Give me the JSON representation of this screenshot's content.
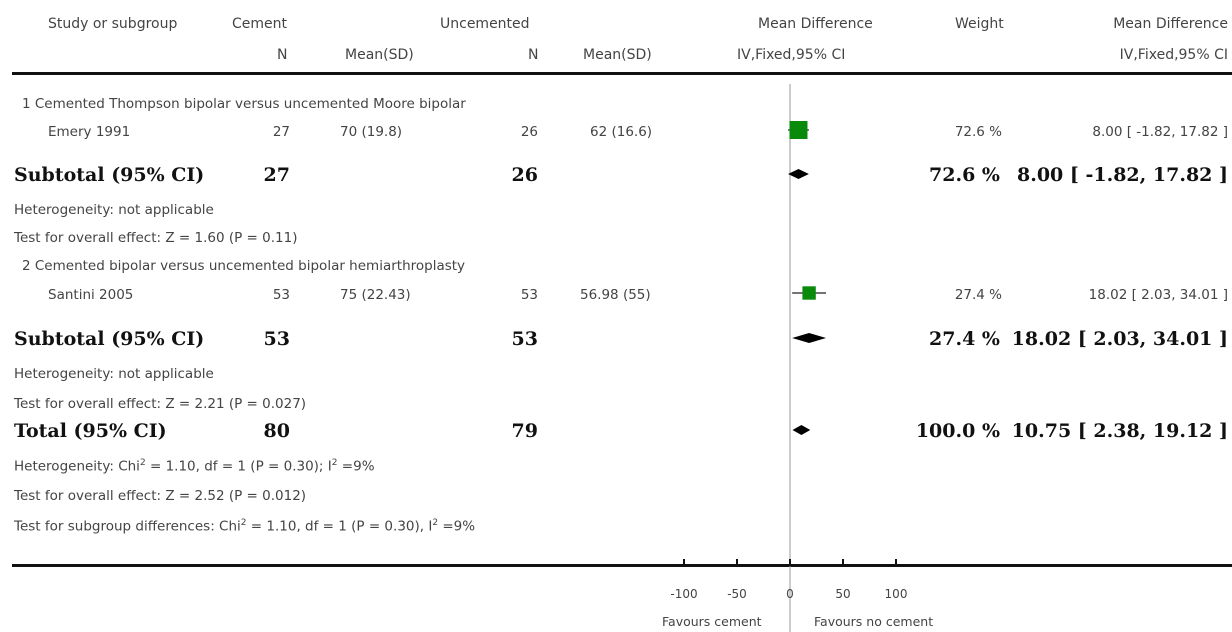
{
  "header": {
    "study_col": "Study or subgroup",
    "group1": "Cement",
    "group2": "Uncemented",
    "n_label": "N",
    "mean_sd_label": "Mean(SD)",
    "md_label": "Mean Difference",
    "md_method": "IV,Fixed,95% CI",
    "weight_label": "Weight",
    "md_label_right": "Mean Difference",
    "md_method_right": "IV,Fixed,95% CI"
  },
  "groups": [
    {
      "title": "1 Cemented Thompson bipolar versus uncemented Moore bipolar",
      "study": {
        "name": "Emery 1991",
        "n1": "27",
        "ms1": "70 (19.8)",
        "n2": "26",
        "ms2": "62 (16.6)",
        "weight": "72.6 %",
        "ci": "8.00 [ -1.82, 17.82 ]"
      },
      "subtotal": {
        "label": "Subtotal (95% CI)",
        "n1": "27",
        "n2": "26",
        "weight": "72.6 %",
        "ci": "8.00 [ -1.82, 17.82 ]"
      },
      "heterogeneity": "Heterogeneity: not applicable",
      "overall": "Test for overall effect: Z = 1.60 (P = 0.11)"
    },
    {
      "title": "2 Cemented bipolar versus uncemented bipolar hemiarthroplasty",
      "study": {
        "name": "Santini 2005",
        "n1": "53",
        "ms1": "75 (22.43)",
        "n2": "53",
        "ms2": "56.98 (55)",
        "weight": "27.4 %",
        "ci": "18.02 [ 2.03, 34.01 ]"
      },
      "subtotal": {
        "label": "Subtotal (95% CI)",
        "n1": "53",
        "n2": "53",
        "weight": "27.4 %",
        "ci": "18.02 [ 2.03, 34.01 ]"
      },
      "heterogeneity": "Heterogeneity: not applicable",
      "overall": "Test for overall effect: Z = 2.21 (P = 0.027)"
    }
  ],
  "total": {
    "label": "Total (95% CI)",
    "n1": "80",
    "n2": "79",
    "weight": "100.0 %",
    "ci": "10.75 [ 2.38, 19.12 ]",
    "het_a": "Heterogeneity: Chi",
    "het_b": " = 1.10, df = 1 (P = 0.30); I",
    "het_c": " =9%",
    "overall": "Test for overall effect: Z = 2.52 (P = 0.012)",
    "sub_a": "Test for subgroup differences: Chi",
    "sub_b": " = 1.10, df = 1 (P = 0.30), I",
    "sub_c": " =9%",
    "sup": "2"
  },
  "footer": {
    "favours_left": "Favours cement",
    "favours_right": "Favours no cement"
  },
  "chart_data": {
    "type": "forest",
    "xlim": [
      -100,
      100
    ],
    "ticks": [
      -100,
      -50,
      0,
      50,
      100
    ],
    "tick_labels": [
      "-100",
      "-50",
      "0",
      "50",
      "100"
    ],
    "studies": [
      {
        "name": "Emery 1991",
        "md": 8.0,
        "lo": -1.82,
        "hi": 17.82,
        "weight": 72.6
      },
      {
        "name": "Santini 2005",
        "md": 18.02,
        "lo": 2.03,
        "hi": 34.01,
        "weight": 27.4
      }
    ],
    "diamonds": [
      {
        "name": "Subtotal 1",
        "md": 8.0,
        "lo": -1.82,
        "hi": 17.82
      },
      {
        "name": "Subtotal 2",
        "md": 18.02,
        "lo": 2.03,
        "hi": 34.01
      },
      {
        "name": "Total",
        "md": 10.75,
        "lo": 2.38,
        "hi": 19.12
      }
    ],
    "colors": {
      "study_box": "#0a8a0a",
      "diamond": "#000000"
    }
  }
}
